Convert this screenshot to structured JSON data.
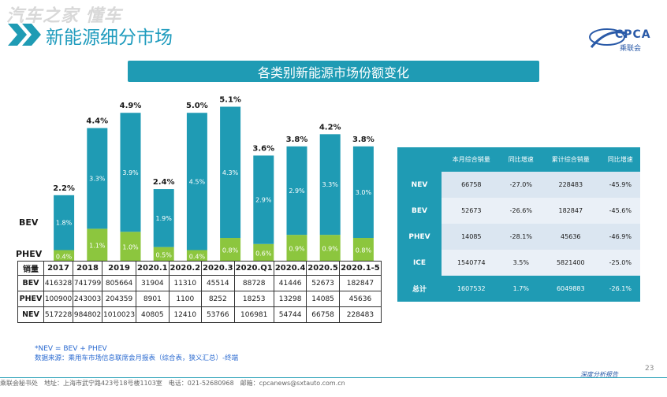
{
  "header": {
    "watermark": "汽车之家 懂车",
    "title": "新能源细分市场",
    "logo_text": "CPCA",
    "logo_sub": "乘联会",
    "banner": "各类别新能源市场份额变化"
  },
  "colors": {
    "bev": "#1f9bb4",
    "phev": "#8cc63e",
    "accent": "#1f9bb4"
  },
  "chart_data": {
    "type": "bar",
    "stacked": true,
    "title": "各类别新能源市场份额变化",
    "categories": [
      "2017",
      "2018",
      "2019",
      "2020.1",
      "2020.2",
      "2020.3",
      "2020.Q1",
      "2020.4",
      "2020.5",
      "2020.1-5"
    ],
    "series": [
      {
        "name": "PHEV",
        "values": [
          0.4,
          1.1,
          1.0,
          0.5,
          0.4,
          0.8,
          0.6,
          0.9,
          0.9,
          0.8
        ],
        "labels": [
          "0.4%",
          "1.1%",
          "1.0%",
          "0.5%",
          "0.4%",
          "0.8%",
          "0.6%",
          "0.9%",
          "0.9%",
          "0.8%"
        ]
      },
      {
        "name": "BEV",
        "values": [
          1.8,
          3.3,
          3.9,
          1.9,
          4.5,
          4.3,
          2.9,
          2.9,
          3.3,
          3.0
        ],
        "labels": [
          "1.8%",
          "3.3%",
          "3.9%",
          "1.9%",
          "4.5%",
          "4.3%",
          "2.9%",
          "2.9%",
          "3.3%",
          "3.0%"
        ]
      }
    ],
    "totals": [
      2.2,
      4.4,
      4.9,
      2.4,
      5.0,
      5.1,
      3.6,
      3.8,
      4.2,
      3.8
    ],
    "total_labels": [
      "2.2%",
      "4.4%",
      "4.9%",
      "2.4%",
      "5.0%",
      "5.1%",
      "3.6%",
      "3.8%",
      "4.2%",
      "3.8%"
    ],
    "series_labels": {
      "bev": "BEV",
      "phev": "PHEV"
    },
    "ylim": [
      0,
      5.5
    ]
  },
  "sales_table": {
    "header_label": "销量",
    "columns": [
      "2017",
      "2018",
      "2019",
      "2020.1",
      "2020.2",
      "2020.3",
      "2020.Q1",
      "2020.4",
      "2020.5",
      "2020.1-5"
    ],
    "rows": [
      {
        "label": "BEV",
        "values": [
          "416328",
          "741799",
          "805664",
          "31904",
          "11310",
          "45514",
          "88728",
          "41446",
          "52673",
          "182847"
        ]
      },
      {
        "label": "PHEV",
        "values": [
          "100900",
          "243003",
          "204359",
          "8901",
          "1100",
          "8252",
          "18253",
          "13298",
          "14085",
          "45636"
        ]
      },
      {
        "label": "NEV",
        "values": [
          "517228",
          "984802",
          "1010023",
          "40805",
          "12410",
          "53766",
          "106981",
          "54744",
          "66758",
          "228483"
        ]
      }
    ]
  },
  "summary_table": {
    "columns": [
      "",
      "本月综合销量",
      "同比增速",
      "累计综合销量",
      "同比增速"
    ],
    "rows": [
      {
        "label": "NEV",
        "values": [
          "66758",
          "-27.0%",
          "228483",
          "-45.9%"
        ]
      },
      {
        "label": "BEV",
        "values": [
          "52673",
          "-26.6%",
          "182847",
          "-45.6%"
        ]
      },
      {
        "label": "PHEV",
        "values": [
          "14085",
          "-28.1%",
          "45636",
          "-46.9%"
        ]
      },
      {
        "label": "ICE",
        "values": [
          "1540774",
          "3.5%",
          "5821400",
          "-25.0%"
        ]
      },
      {
        "label": "总计",
        "values": [
          "1607532",
          "1.7%",
          "6049883",
          "-26.1%"
        ]
      }
    ]
  },
  "notes": {
    "formula": "*NEV = BEV + PHEV",
    "source": "数据来源：乘用车市场信息联席会月报表（综合表，狭义汇总）-终端"
  },
  "footer": {
    "left": "乘联会秘书处　地址：上海市武宁路423号18号楼1103室　电话：021-52680968　邮箱：cpcanews@sxtauto.com.cn",
    "right": "深度分析报告",
    "page": "23"
  }
}
